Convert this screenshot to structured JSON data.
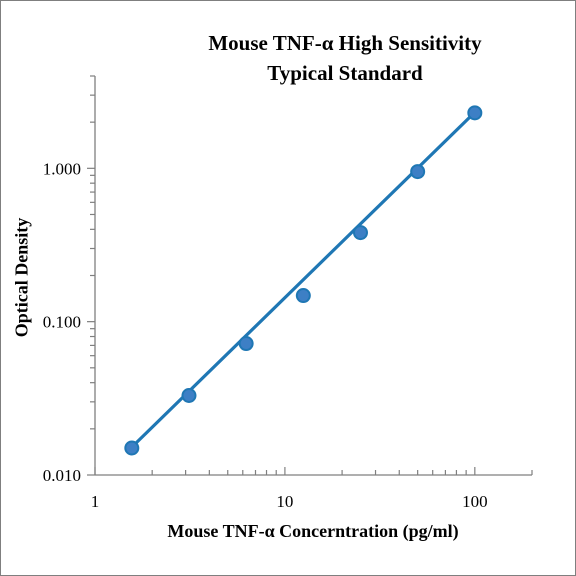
{
  "chart_data": {
    "type": "scatter",
    "title": [
      "Mouse TNF-α High Sensitivity",
      "Typical Standard"
    ],
    "xlabel": "Mouse TNF-α Concerntration (pg/ml)",
    "ylabel": "Optical Density",
    "x_scale": "log",
    "y_scale": "log",
    "xlim": [
      1,
      200
    ],
    "ylim": [
      0.01,
      4
    ],
    "x_ticks": [
      1,
      10,
      100
    ],
    "x_tick_labels": [
      "1",
      "10",
      "100"
    ],
    "y_ticks": [
      0.01,
      0.1,
      1
    ],
    "y_tick_labels": [
      "0.010",
      "0.100",
      "1.000"
    ],
    "grid": false,
    "colors": {
      "series": "#1f77b4",
      "marker_fill": "#3d7fc5"
    },
    "series": [
      {
        "x": [
          1.5625,
          3.125,
          6.25,
          12.5,
          25,
          50,
          100
        ],
        "y": [
          0.015,
          0.033,
          0.072,
          0.148,
          0.381,
          0.952,
          2.3
        ]
      }
    ],
    "fit_line": {
      "x": [
        1.5625,
        100
      ],
      "y": [
        0.0152,
        2.32
      ]
    }
  }
}
